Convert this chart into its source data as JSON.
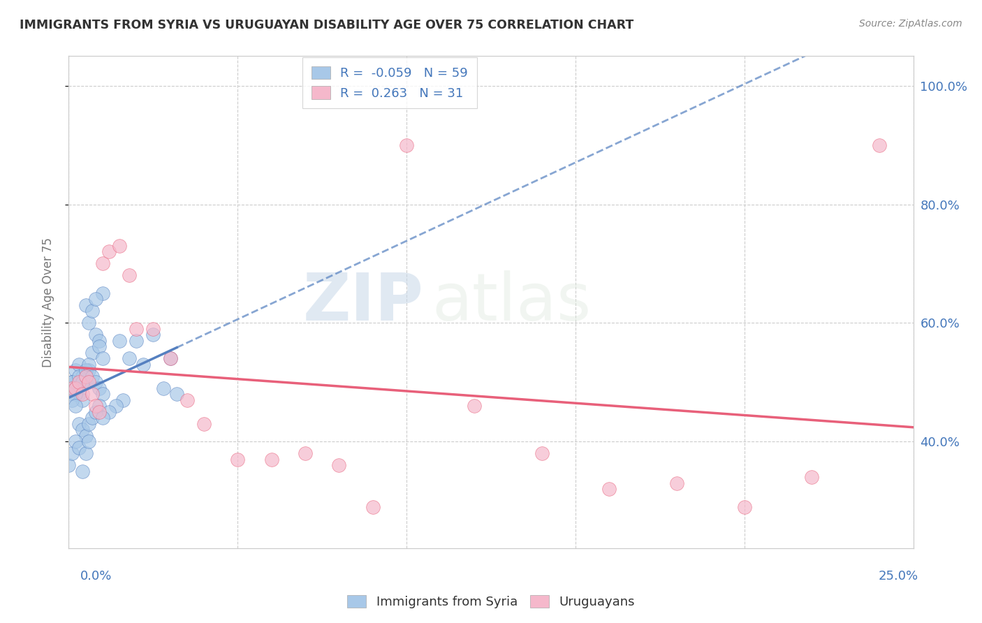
{
  "title": "IMMIGRANTS FROM SYRIA VS URUGUAYAN DISABILITY AGE OVER 75 CORRELATION CHART",
  "source": "Source: ZipAtlas.com",
  "ylabel": "Disability Age Over 75",
  "legend_syria": "Immigrants from Syria",
  "legend_uruguayan": "Uruguayans",
  "R_syria": -0.059,
  "N_syria": 59,
  "R_uruguayan": 0.263,
  "N_uruguayan": 31,
  "color_syria": "#a8c8e8",
  "color_uruguayan": "#f5b8cb",
  "color_syria_line": "#5580c0",
  "color_uruguayan_line": "#e8607a",
  "watermark_zip": "ZIP",
  "watermark_atlas": "atlas",
  "xlim": [
    0,
    0.25
  ],
  "ylim": [
    0.22,
    1.05
  ],
  "xticks": [
    0.0,
    0.05,
    0.1,
    0.15,
    0.2,
    0.25
  ],
  "yticks": [
    0.4,
    0.6,
    0.8,
    1.0
  ],
  "ytick_labels": [
    "40.0%",
    "60.0%",
    "80.0%",
    "100.0%"
  ],
  "syria_x": [
    0.001,
    0.002,
    0.003,
    0.004,
    0.005,
    0.006,
    0.007,
    0.008,
    0.009,
    0.01,
    0.001,
    0.002,
    0.003,
    0.004,
    0.005,
    0.006,
    0.007,
    0.008,
    0.009,
    0.01,
    0.001,
    0.002,
    0.003,
    0.004,
    0.005,
    0.006,
    0.007,
    0.008,
    0.009,
    0.01,
    0.0,
    0.001,
    0.002,
    0.003,
    0.004,
    0.005,
    0.006,
    0.007,
    0.008,
    0.009,
    0.0,
    0.001,
    0.002,
    0.003,
    0.004,
    0.005,
    0.006,
    0.02,
    0.025,
    0.03,
    0.015,
    0.018,
    0.022,
    0.028,
    0.032,
    0.016,
    0.014,
    0.012,
    0.01
  ],
  "syria_y": [
    0.5,
    0.52,
    0.48,
    0.47,
    0.63,
    0.6,
    0.55,
    0.58,
    0.57,
    0.65,
    0.5,
    0.48,
    0.53,
    0.51,
    0.5,
    0.52,
    0.62,
    0.64,
    0.56,
    0.54,
    0.5,
    0.49,
    0.51,
    0.5,
    0.52,
    0.53,
    0.51,
    0.5,
    0.49,
    0.48,
    0.48,
    0.47,
    0.46,
    0.43,
    0.42,
    0.41,
    0.43,
    0.44,
    0.45,
    0.46,
    0.36,
    0.38,
    0.4,
    0.39,
    0.35,
    0.38,
    0.4,
    0.57,
    0.58,
    0.54,
    0.57,
    0.54,
    0.53,
    0.49,
    0.48,
    0.47,
    0.46,
    0.45,
    0.44
  ],
  "uruguayan_x": [
    0.001,
    0.002,
    0.003,
    0.004,
    0.005,
    0.006,
    0.007,
    0.008,
    0.009,
    0.01,
    0.012,
    0.015,
    0.018,
    0.02,
    0.025,
    0.03,
    0.035,
    0.04,
    0.06,
    0.08,
    0.1,
    0.12,
    0.14,
    0.16,
    0.18,
    0.2,
    0.22,
    0.24,
    0.05,
    0.07,
    0.09
  ],
  "uruguayan_y": [
    0.49,
    0.49,
    0.5,
    0.48,
    0.51,
    0.5,
    0.48,
    0.46,
    0.45,
    0.7,
    0.72,
    0.73,
    0.68,
    0.59,
    0.59,
    0.54,
    0.47,
    0.43,
    0.37,
    0.36,
    0.9,
    0.46,
    0.38,
    0.32,
    0.33,
    0.29,
    0.34,
    0.9,
    0.37,
    0.38,
    0.29
  ]
}
